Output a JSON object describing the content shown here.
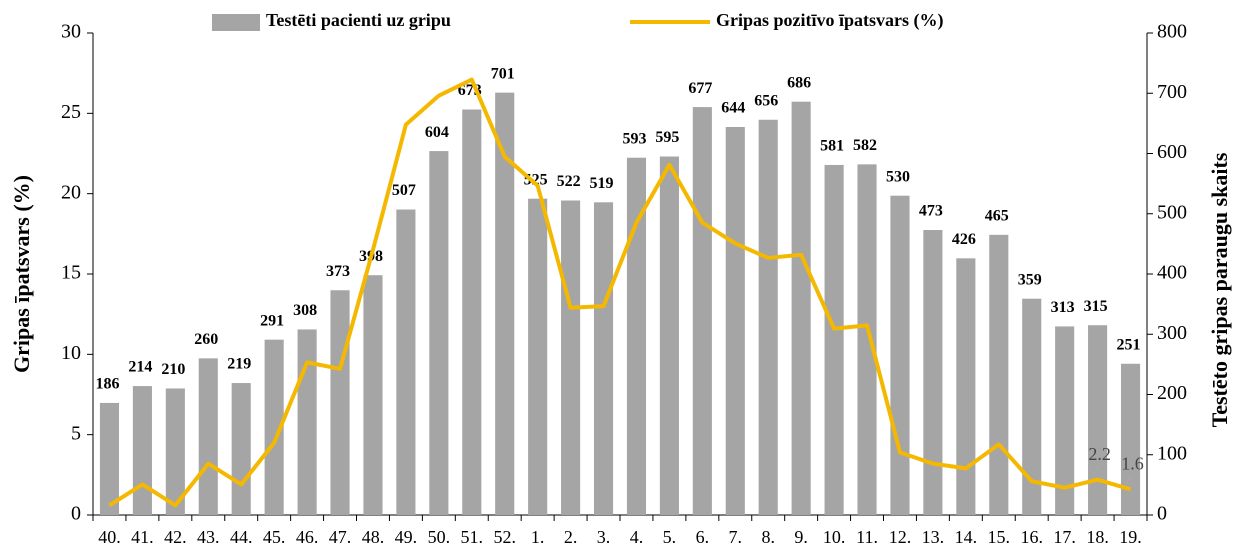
{
  "chart_data": {
    "type": "bar-line",
    "categories": [
      "40.",
      "41.",
      "42.",
      "43.",
      "44.",
      "45.",
      "46.",
      "47.",
      "48.",
      "49.",
      "50.",
      "51.",
      "52.",
      "1.",
      "2.",
      "3.",
      "4.",
      "5.",
      "6.",
      "7.",
      "8.",
      "9.",
      "10.",
      "11.",
      "12.",
      "13.",
      "14.",
      "15.",
      "16.",
      "17.",
      "18.",
      "19."
    ],
    "ylabel": "Gripas īpatsvars (%)",
    "y2label": "Testēto gripas paraugu skaits",
    "ylim": [
      0,
      30
    ],
    "yticks": [
      0,
      5,
      10,
      15,
      20,
      25,
      30
    ],
    "y2lim": [
      0,
      800
    ],
    "y2ticks": [
      0,
      100,
      200,
      300,
      400,
      500,
      600,
      700,
      800
    ],
    "legend": "top",
    "series": [
      {
        "name": "Testēti pacienti uz gripu",
        "type": "bar",
        "axis": "y2",
        "color": "#a5a5a5",
        "data_labels": true,
        "values": [
          186,
          214,
          210,
          260,
          219,
          291,
          308,
          373,
          398,
          507,
          604,
          673,
          701,
          525,
          522,
          519,
          593,
          595,
          677,
          644,
          656,
          686,
          581,
          582,
          530,
          473,
          426,
          465,
          359,
          313,
          315,
          251
        ]
      },
      {
        "name": "Gripas pozitīvo īpatsvars (%)",
        "type": "line",
        "axis": "y",
        "color": "#f5b800",
        "values": [
          0.6,
          1.9,
          0.6,
          3.2,
          1.9,
          4.5,
          9.5,
          9.1,
          16.5,
          24.3,
          26.1,
          27.1,
          22.3,
          20.5,
          12.9,
          13.0,
          18.2,
          21.8,
          18.2,
          16.9,
          16.0,
          16.2,
          11.6,
          11.8,
          3.9,
          3.2,
          2.9,
          4.4,
          2.1,
          1.7,
          2.2,
          1.6
        ],
        "value_labels": [
          null,
          null,
          null,
          null,
          null,
          null,
          null,
          null,
          null,
          null,
          null,
          null,
          null,
          null,
          null,
          null,
          null,
          null,
          null,
          null,
          null,
          null,
          null,
          null,
          null,
          null,
          null,
          null,
          null,
          null,
          "2.2",
          "1.6"
        ]
      }
    ]
  }
}
